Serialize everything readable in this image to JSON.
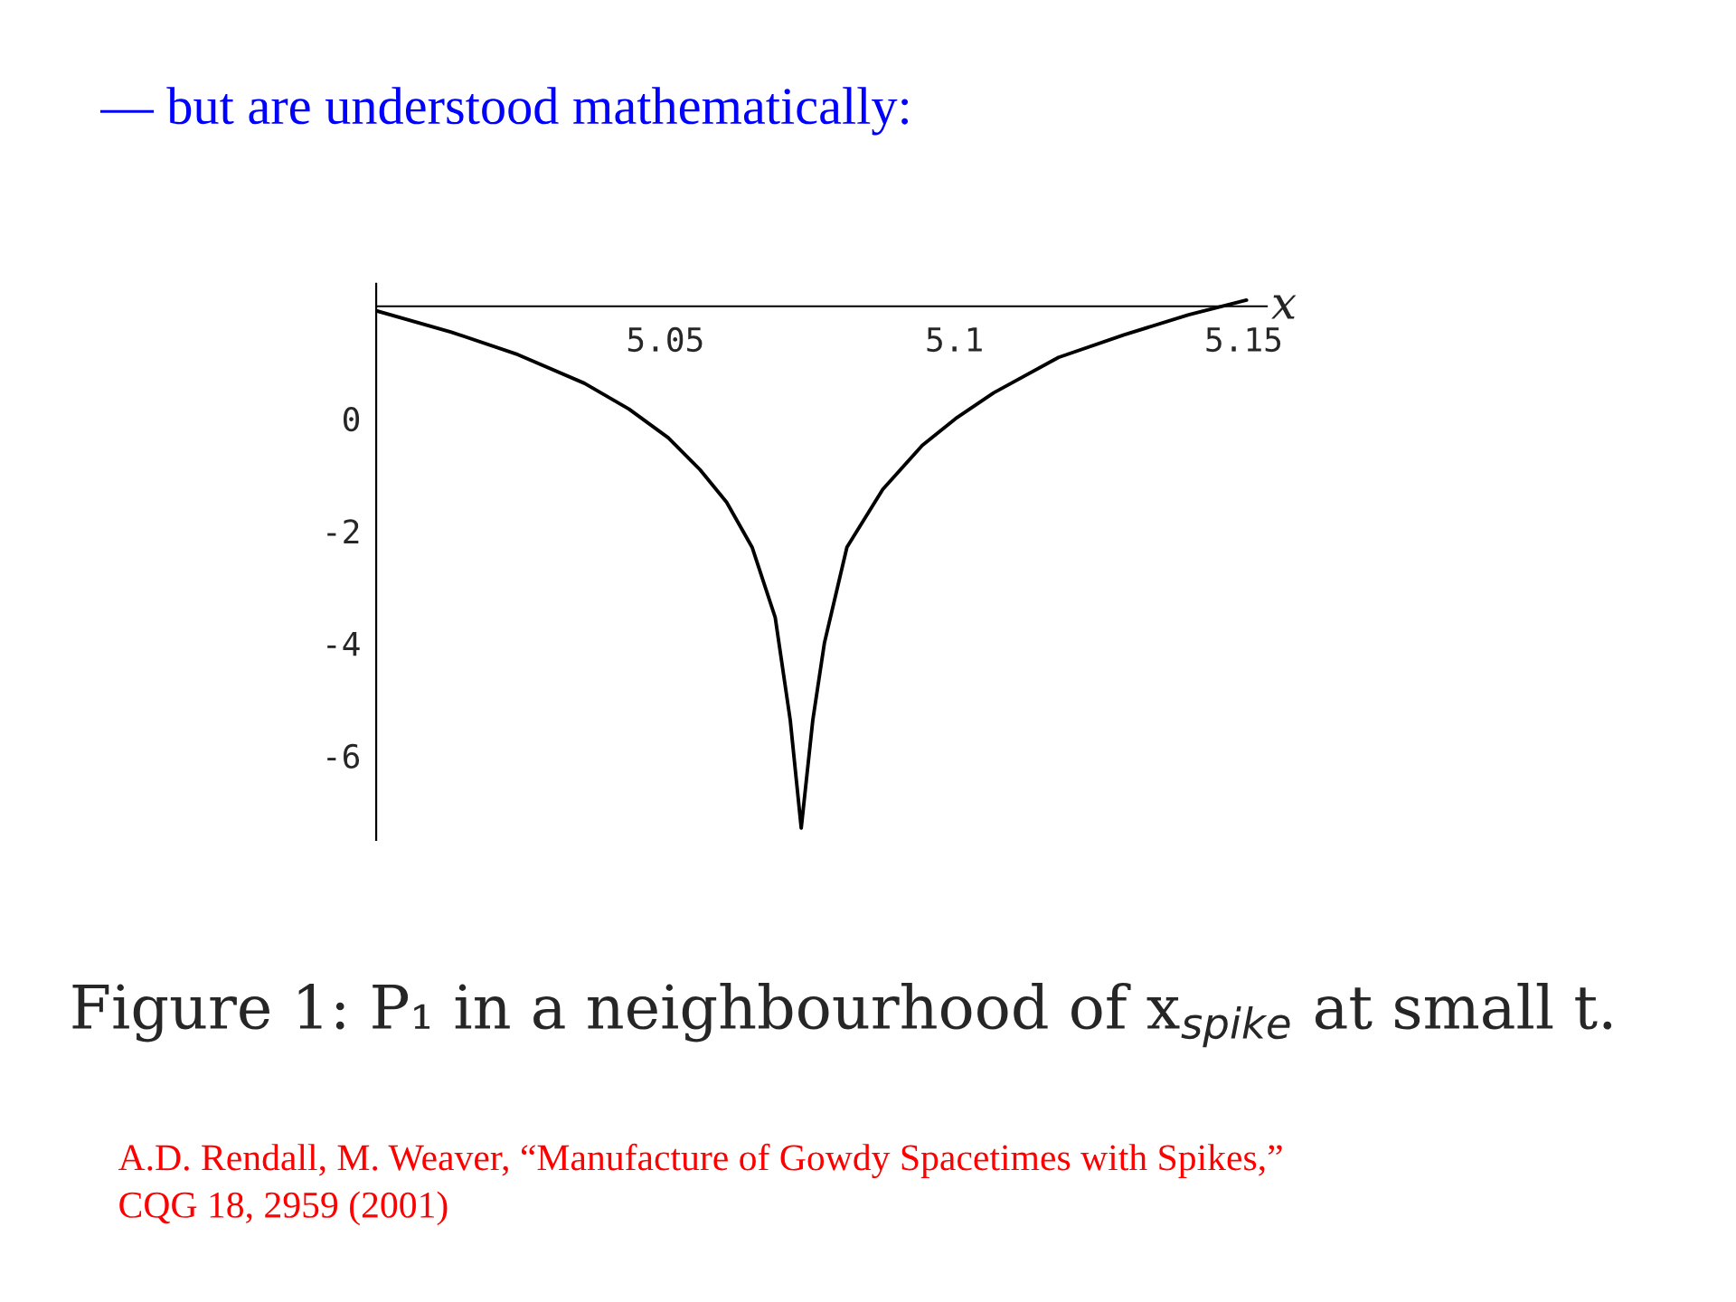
{
  "chart_data": {
    "type": "line",
    "title": "— but are understood mathematically:",
    "xlabel": "x",
    "x": [
      5.0,
      5.013,
      5.0245,
      5.036,
      5.0437,
      5.0505,
      5.056,
      5.0606,
      5.065,
      5.069,
      5.0716,
      5.0735,
      5.0755,
      5.0775,
      5.0814,
      5.0876,
      5.0944,
      5.1002,
      5.1068,
      5.118,
      5.1293,
      5.1405,
      5.1505
    ],
    "series": [
      {
        "color": "#000000",
        "values": [
          1.92,
          1.54,
          1.14,
          0.63,
          0.17,
          -0.34,
          -0.91,
          -1.49,
          -2.29,
          -3.54,
          -5.37,
          -7.29,
          -5.37,
          -4.0,
          -2.29,
          -1.26,
          -0.48,
          0.0,
          0.46,
          1.09,
          1.49,
          1.85,
          2.11
        ]
      }
    ],
    "xlim": [
      5.0,
      5.154
    ],
    "ylim": [
      -7.5,
      2.4
    ],
    "xticks": [
      5.05,
      5.1,
      5.15
    ],
    "yticks": [
      0,
      -2,
      -4,
      -6
    ],
    "grid": false,
    "marker": "none",
    "line_style": "solid",
    "annotations": [
      "Figure 1: P₁ in a neighbourhood of x$_{spike}$ at small t.",
      "A.D. Rendall, M. Weaver, “Manufacture of Gowdy Spacetimes with Spikes,”\nCQG 18, 2959 (2001)"
    ]
  }
}
